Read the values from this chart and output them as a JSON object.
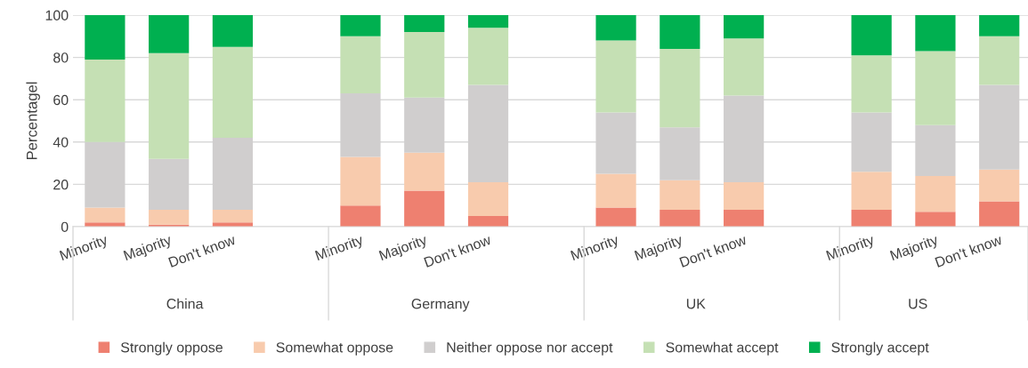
{
  "chart_data": {
    "type": "bar",
    "stacked": true,
    "ylabel": "Percentagel",
    "categories": [
      "Minority",
      "Majority",
      "Don't know",
      null,
      "Minority",
      "Majority",
      "Don't know",
      null,
      "Minority",
      "Majority",
      "Don't know",
      null,
      "Minority",
      "Majority",
      "Don't know"
    ],
    "annotations": [
      "China",
      "Germany",
      "UK",
      "US"
    ],
    "series": [
      {
        "name": "Strongly oppose",
        "color": "#ee8070",
        "values": [
          2,
          1,
          2,
          null,
          10,
          17,
          5,
          null,
          9,
          8,
          8,
          null,
          8,
          7,
          12
        ]
      },
      {
        "name": "Somewhat oppose",
        "color": "#f8cbad",
        "values": [
          7,
          7,
          6,
          null,
          23,
          18,
          16,
          null,
          16,
          14,
          13,
          null,
          18,
          17,
          15
        ]
      },
      {
        "name": "Neither oppose nor accept",
        "color": "#d0cece",
        "values": [
          31,
          24,
          34,
          null,
          30,
          26,
          46,
          null,
          29,
          25,
          41,
          null,
          28,
          24,
          40
        ]
      },
      {
        "name": "Somewhat accept",
        "color": "#c5e0b4",
        "values": [
          39,
          50,
          43,
          null,
          27,
          31,
          27,
          null,
          34,
          37,
          27,
          null,
          27,
          35,
          23
        ]
      },
      {
        "name": "Strongly accept",
        "color": "#00b050",
        "values": [
          21,
          18,
          15,
          null,
          10,
          8,
          6,
          null,
          12,
          16,
          11,
          null,
          19,
          17,
          10
        ]
      }
    ],
    "ylim": [
      0,
      100
    ],
    "yticks": [
      0,
      20,
      40,
      60,
      80,
      100
    ],
    "grid": "y",
    "legend": "bottom"
  }
}
